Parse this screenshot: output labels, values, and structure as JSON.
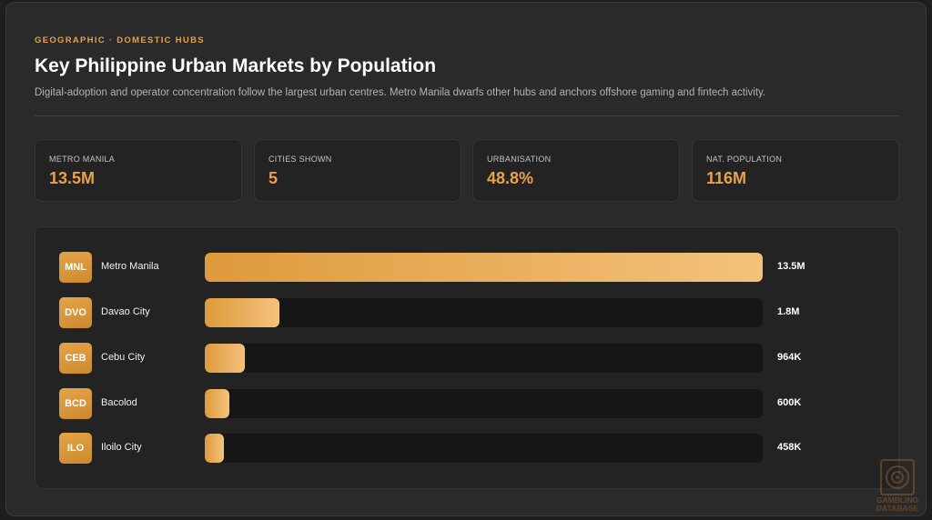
{
  "header": {
    "kicker": "GEOGRAPHIC · DOMESTIC HUBS",
    "title": "Key Philippine Urban Markets by Population",
    "subtitle": "Digital-adoption and operator concentration follow the largest urban centres. Metro Manila dwarfs other hubs and anchors offshore gaming and fintech activity."
  },
  "stats": [
    {
      "label": "METRO MANILA",
      "value": "13.5M"
    },
    {
      "label": "CITIES SHOWN",
      "value": "5"
    },
    {
      "label": "URBANISATION",
      "value": "48.8%"
    },
    {
      "label": "NAT. POPULATION",
      "value": "116M"
    }
  ],
  "colors": {
    "accent": "#e8a04a",
    "bar_start": "#de9a3c",
    "bar_end": "#f4c27c",
    "background": "#2a2a2a"
  },
  "chart_data": {
    "type": "bar",
    "orientation": "horizontal",
    "categories": [
      "Metro Manila",
      "Davao City",
      "Cebu City",
      "Bacolod",
      "Iloilo City"
    ],
    "codes": [
      "MNL",
      "DVO",
      "CEB",
      "BCD",
      "ILO"
    ],
    "values": [
      13500000,
      1800000,
      964000,
      600000,
      458000
    ],
    "value_labels": [
      "13.5M",
      "1.8M",
      "964K",
      "600K",
      "458K"
    ],
    "xlim": [
      0,
      13500000
    ],
    "grid": false
  },
  "watermark": {
    "line1": "GAMBLING",
    "line2": "DATABASE",
    "icon": "roulette-wheel-icon"
  }
}
